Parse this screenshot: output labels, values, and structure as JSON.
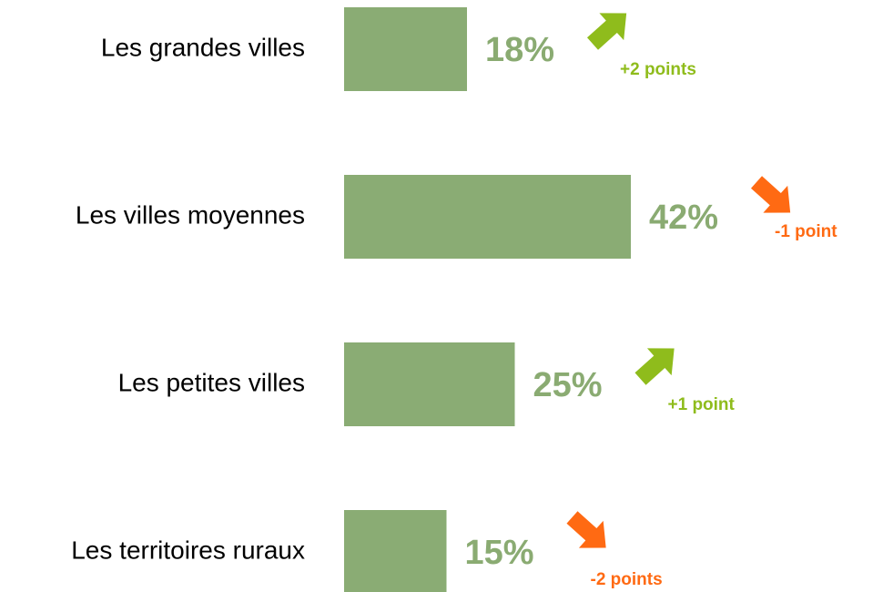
{
  "chart_data": {
    "type": "bar",
    "orientation": "horizontal",
    "categories": [
      "Les grandes villes",
      "Les villes moyennes",
      "Les petites villes",
      "Les territoires ruraux"
    ],
    "values": [
      18,
      42,
      25,
      15
    ],
    "value_labels": [
      "18%",
      "42%",
      "25%",
      "15%"
    ],
    "color": "#8aac74",
    "value_label_color": "#8aab72",
    "changes": [
      2,
      -1,
      1,
      -2
    ],
    "change_labels": [
      "+2 points",
      "-1 point",
      "+1 point",
      "-2 points"
    ],
    "up_color": "#8fbc1c",
    "down_color": "#ff6a13"
  }
}
